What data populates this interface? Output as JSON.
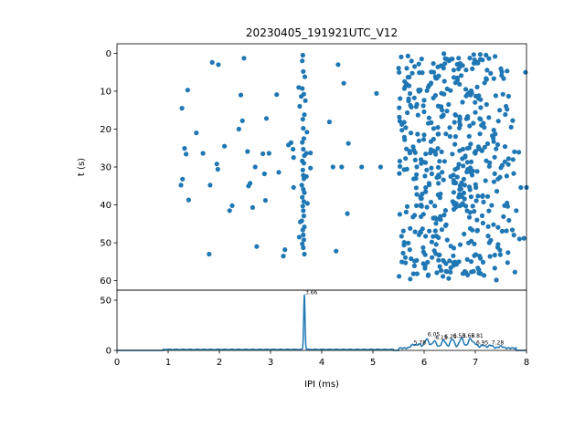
{
  "chart_data": [
    {
      "type": "scatter",
      "title": "20230405_191921UTC_V12",
      "xlabel": "",
      "ylabel": "t (s)",
      "xlim": [
        0,
        8
      ],
      "ylim": [
        62.5,
        -2.5
      ],
      "y_inverted": true,
      "yticks": [
        "0",
        "10",
        "20",
        "30",
        "40",
        "50",
        "60"
      ],
      "grid": false,
      "marker_color": "#1f77b4",
      "points_description_free": true,
      "clusters": [
        {
          "x_min": 1.2,
          "x_max": 3.2,
          "count": 55
        },
        {
          "x_min": 3.55,
          "x_max": 3.75,
          "count": 50
        },
        {
          "x_min": 3.8,
          "x_max": 5.2,
          "count": 16
        },
        {
          "x_min": 5.4,
          "x_max": 8.0,
          "count": 520
        }
      ],
      "points": [
        [
          1.27,
          14.5
        ],
        [
          1.38,
          9.7
        ],
        [
          1.32,
          25.1
        ],
        [
          1.35,
          26.6
        ],
        [
          1.28,
          33.2
        ],
        [
          1.25,
          34.8
        ],
        [
          1.4,
          38.7
        ],
        [
          1.55,
          21.0
        ],
        [
          1.68,
          26.4
        ],
        [
          1.82,
          34.8
        ],
        [
          1.8,
          53.0
        ],
        [
          1.86,
          2.4
        ],
        [
          1.95,
          29.2
        ],
        [
          1.97,
          30.6
        ],
        [
          1.98,
          3.0
        ],
        [
          2.1,
          24.5
        ],
        [
          2.2,
          41.5
        ],
        [
          2.25,
          40.2
        ],
        [
          2.38,
          20.0
        ],
        [
          2.45,
          17.8
        ],
        [
          2.42,
          11.0
        ],
        [
          2.48,
          1.3
        ],
        [
          2.55,
          25.9
        ],
        [
          2.57,
          35.0
        ],
        [
          2.6,
          34.3
        ],
        [
          2.65,
          40.7
        ],
        [
          2.7,
          30.0
        ],
        [
          2.73,
          51.0
        ],
        [
          2.85,
          26.5
        ],
        [
          2.88,
          31.8
        ],
        [
          2.9,
          38.8
        ],
        [
          2.92,
          17.2
        ],
        [
          2.97,
          26.4
        ],
        [
          3.12,
          10.9
        ],
        [
          3.16,
          31.4
        ],
        [
          3.28,
          51.8
        ],
        [
          3.25,
          53.5
        ],
        [
          3.35,
          24.2
        ],
        [
          3.4,
          23.6
        ],
        [
          3.44,
          25.3
        ],
        [
          3.45,
          27.5
        ],
        [
          3.45,
          35.4
        ],
        [
          3.63,
          0.5
        ],
        [
          3.64,
          4.8
        ],
        [
          3.62,
          9.3
        ],
        [
          3.65,
          10.8
        ],
        [
          3.66,
          16.2
        ],
        [
          3.63,
          17.4
        ],
        [
          3.64,
          19.8
        ],
        [
          3.65,
          22.5
        ],
        [
          3.62,
          23.5
        ],
        [
          3.64,
          25.3
        ],
        [
          3.66,
          27.0
        ],
        [
          3.62,
          28.4
        ],
        [
          3.65,
          29.0
        ],
        [
          3.63,
          30.8
        ],
        [
          3.64,
          32.2
        ],
        [
          3.65,
          33.1
        ],
        [
          3.61,
          34.8
        ],
        [
          3.64,
          35.9
        ],
        [
          3.66,
          36.8
        ],
        [
          3.62,
          38.0
        ],
        [
          3.65,
          39.1
        ],
        [
          3.63,
          40.3
        ],
        [
          3.64,
          41.5
        ],
        [
          3.65,
          42.9
        ],
        [
          3.61,
          44.2
        ],
        [
          3.66,
          45.8
        ],
        [
          3.63,
          46.6
        ],
        [
          3.64,
          47.9
        ],
        [
          3.65,
          49.2
        ],
        [
          3.62,
          50.3
        ],
        [
          3.64,
          51.3
        ],
        [
          3.66,
          53.0
        ],
        [
          3.6,
          11.4
        ],
        [
          3.57,
          14.0
        ],
        [
          3.55,
          9.0
        ],
        [
          3.67,
          6.2
        ],
        [
          3.7,
          26.4
        ],
        [
          3.72,
          39.6
        ],
        [
          3.58,
          44.5
        ],
        [
          3.68,
          12.5
        ],
        [
          3.62,
          2.0
        ],
        [
          3.7,
          32.5
        ],
        [
          3.56,
          48.5
        ],
        [
          3.71,
          20.8
        ],
        [
          3.78,
          30.3
        ],
        [
          3.78,
          26.3
        ],
        [
          4.15,
          18.1
        ],
        [
          4.22,
          30.0
        ],
        [
          4.28,
          52.2
        ],
        [
          4.32,
          3.0
        ],
        [
          4.39,
          30.0
        ],
        [
          4.43,
          7.9
        ],
        [
          4.5,
          42.3
        ],
        [
          4.52,
          23.8
        ],
        [
          4.78,
          30.0
        ],
        [
          5.07,
          10.6
        ],
        [
          5.15,
          30.0
        ],
        [
          5.62,
          22.8
        ],
        [
          5.65,
          41.9
        ],
        [
          5.72,
          51.8
        ],
        [
          5.75,
          14.2
        ],
        [
          5.8,
          25.6
        ],
        [
          5.84,
          33.0
        ],
        [
          5.85,
          40.2
        ],
        [
          5.88,
          16.3
        ],
        [
          5.9,
          23.1
        ],
        [
          5.95,
          38.3
        ],
        [
          5.97,
          46.3
        ],
        [
          6.0,
          12.4
        ],
        [
          6.02,
          56.1
        ],
        [
          6.05,
          30.8
        ],
        [
          6.08,
          18.5
        ],
        [
          6.1,
          34.7
        ],
        [
          6.12,
          26.3
        ],
        [
          6.15,
          49.8
        ],
        [
          6.18,
          11.8
        ],
        [
          6.2,
          43.5
        ],
        [
          6.22,
          6.2
        ],
        [
          6.25,
          57.9
        ],
        [
          6.28,
          21.3
        ],
        [
          6.3,
          53.2
        ],
        [
          6.32,
          37.1
        ],
        [
          6.35,
          15.0
        ],
        [
          6.38,
          3.9
        ],
        [
          6.4,
          28.5
        ],
        [
          6.42,
          45.5
        ],
        [
          6.45,
          9.4
        ],
        [
          6.48,
          59.4
        ],
        [
          6.5,
          19.6
        ],
        [
          6.52,
          32.5
        ],
        [
          6.55,
          1.5
        ],
        [
          6.58,
          51.4
        ],
        [
          6.6,
          24.0
        ],
        [
          6.62,
          40.6
        ],
        [
          6.65,
          7.1
        ],
        [
          6.68,
          55.0
        ],
        [
          6.7,
          17.3
        ],
        [
          6.72,
          35.8
        ],
        [
          6.75,
          12.9
        ],
        [
          6.78,
          47.7
        ],
        [
          6.8,
          27.4
        ],
        [
          6.82,
          4.4
        ],
        [
          6.85,
          58.5
        ],
        [
          6.88,
          21.9
        ],
        [
          6.9,
          42.0
        ],
        [
          6.92,
          9.9
        ],
        [
          6.95,
          31.0
        ],
        [
          6.98,
          50.3
        ],
        [
          7.0,
          15.6
        ],
        [
          7.02,
          38.9
        ],
        [
          7.05,
          2.6
        ],
        [
          7.08,
          25.2
        ],
        [
          7.1,
          54.1
        ],
        [
          7.12,
          19.0
        ],
        [
          7.15,
          44.8
        ],
        [
          7.18,
          7.8
        ],
        [
          7.2,
          33.6
        ],
        [
          7.22,
          13.5
        ],
        [
          7.25,
          48.2
        ],
        [
          7.28,
          28.9
        ],
        [
          7.3,
          5.3
        ],
        [
          7.32,
          40.1
        ],
        [
          7.35,
          22.4
        ],
        [
          7.38,
          56.7
        ],
        [
          7.4,
          11.2
        ],
        [
          7.42,
          36.4
        ],
        [
          7.45,
          17.9
        ],
        [
          7.48,
          51.9
        ],
        [
          7.5,
          30.2
        ],
        [
          7.52,
          4.9
        ],
        [
          7.55,
          43.1
        ],
        [
          7.58,
          24.6
        ],
        [
          7.6,
          14.0
        ],
        [
          7.62,
          39.5
        ],
        [
          7.65,
          27.8
        ],
        [
          7.7,
          19.5
        ],
        [
          7.75,
          31.7
        ],
        [
          7.8,
          41.5
        ],
        [
          7.85,
          26.1
        ],
        [
          7.95,
          48.8
        ],
        [
          8.0,
          35.4
        ],
        [
          7.98,
          5.0
        ]
      ]
    },
    {
      "type": "line",
      "title": "",
      "xlabel": "IPI (ms)",
      "ylabel": "",
      "xlim": [
        0,
        8
      ],
      "ylim": [
        0,
        60
      ],
      "xticks": [
        "0",
        "1",
        "2",
        "3",
        "4",
        "5",
        "6",
        "7",
        "8"
      ],
      "yticks": [
        "0",
        "50"
      ],
      "grid": false,
      "line_color": "#1f77b4",
      "peak": {
        "x": 3.66,
        "y": 55
      },
      "annotations": [
        {
          "text": "3.66",
          "x": 3.66,
          "y": 55
        },
        {
          "text": "5.78",
          "x": 5.78,
          "y": 5
        },
        {
          "text": "6.05",
          "x": 6.05,
          "y": 13
        },
        {
          "text": "6.15",
          "x": 6.2,
          "y": 10
        },
        {
          "text": "6.29",
          "x": 6.38,
          "y": 11
        },
        {
          "text": "6.53",
          "x": 6.55,
          "y": 12
        },
        {
          "text": "6.67",
          "x": 6.73,
          "y": 12
        },
        {
          "text": "6.81",
          "x": 6.9,
          "y": 12
        },
        {
          "text": "6.95",
          "x": 7.0,
          "y": 5
        },
        {
          "text": "7.28",
          "x": 7.3,
          "y": 5
        }
      ]
    }
  ]
}
